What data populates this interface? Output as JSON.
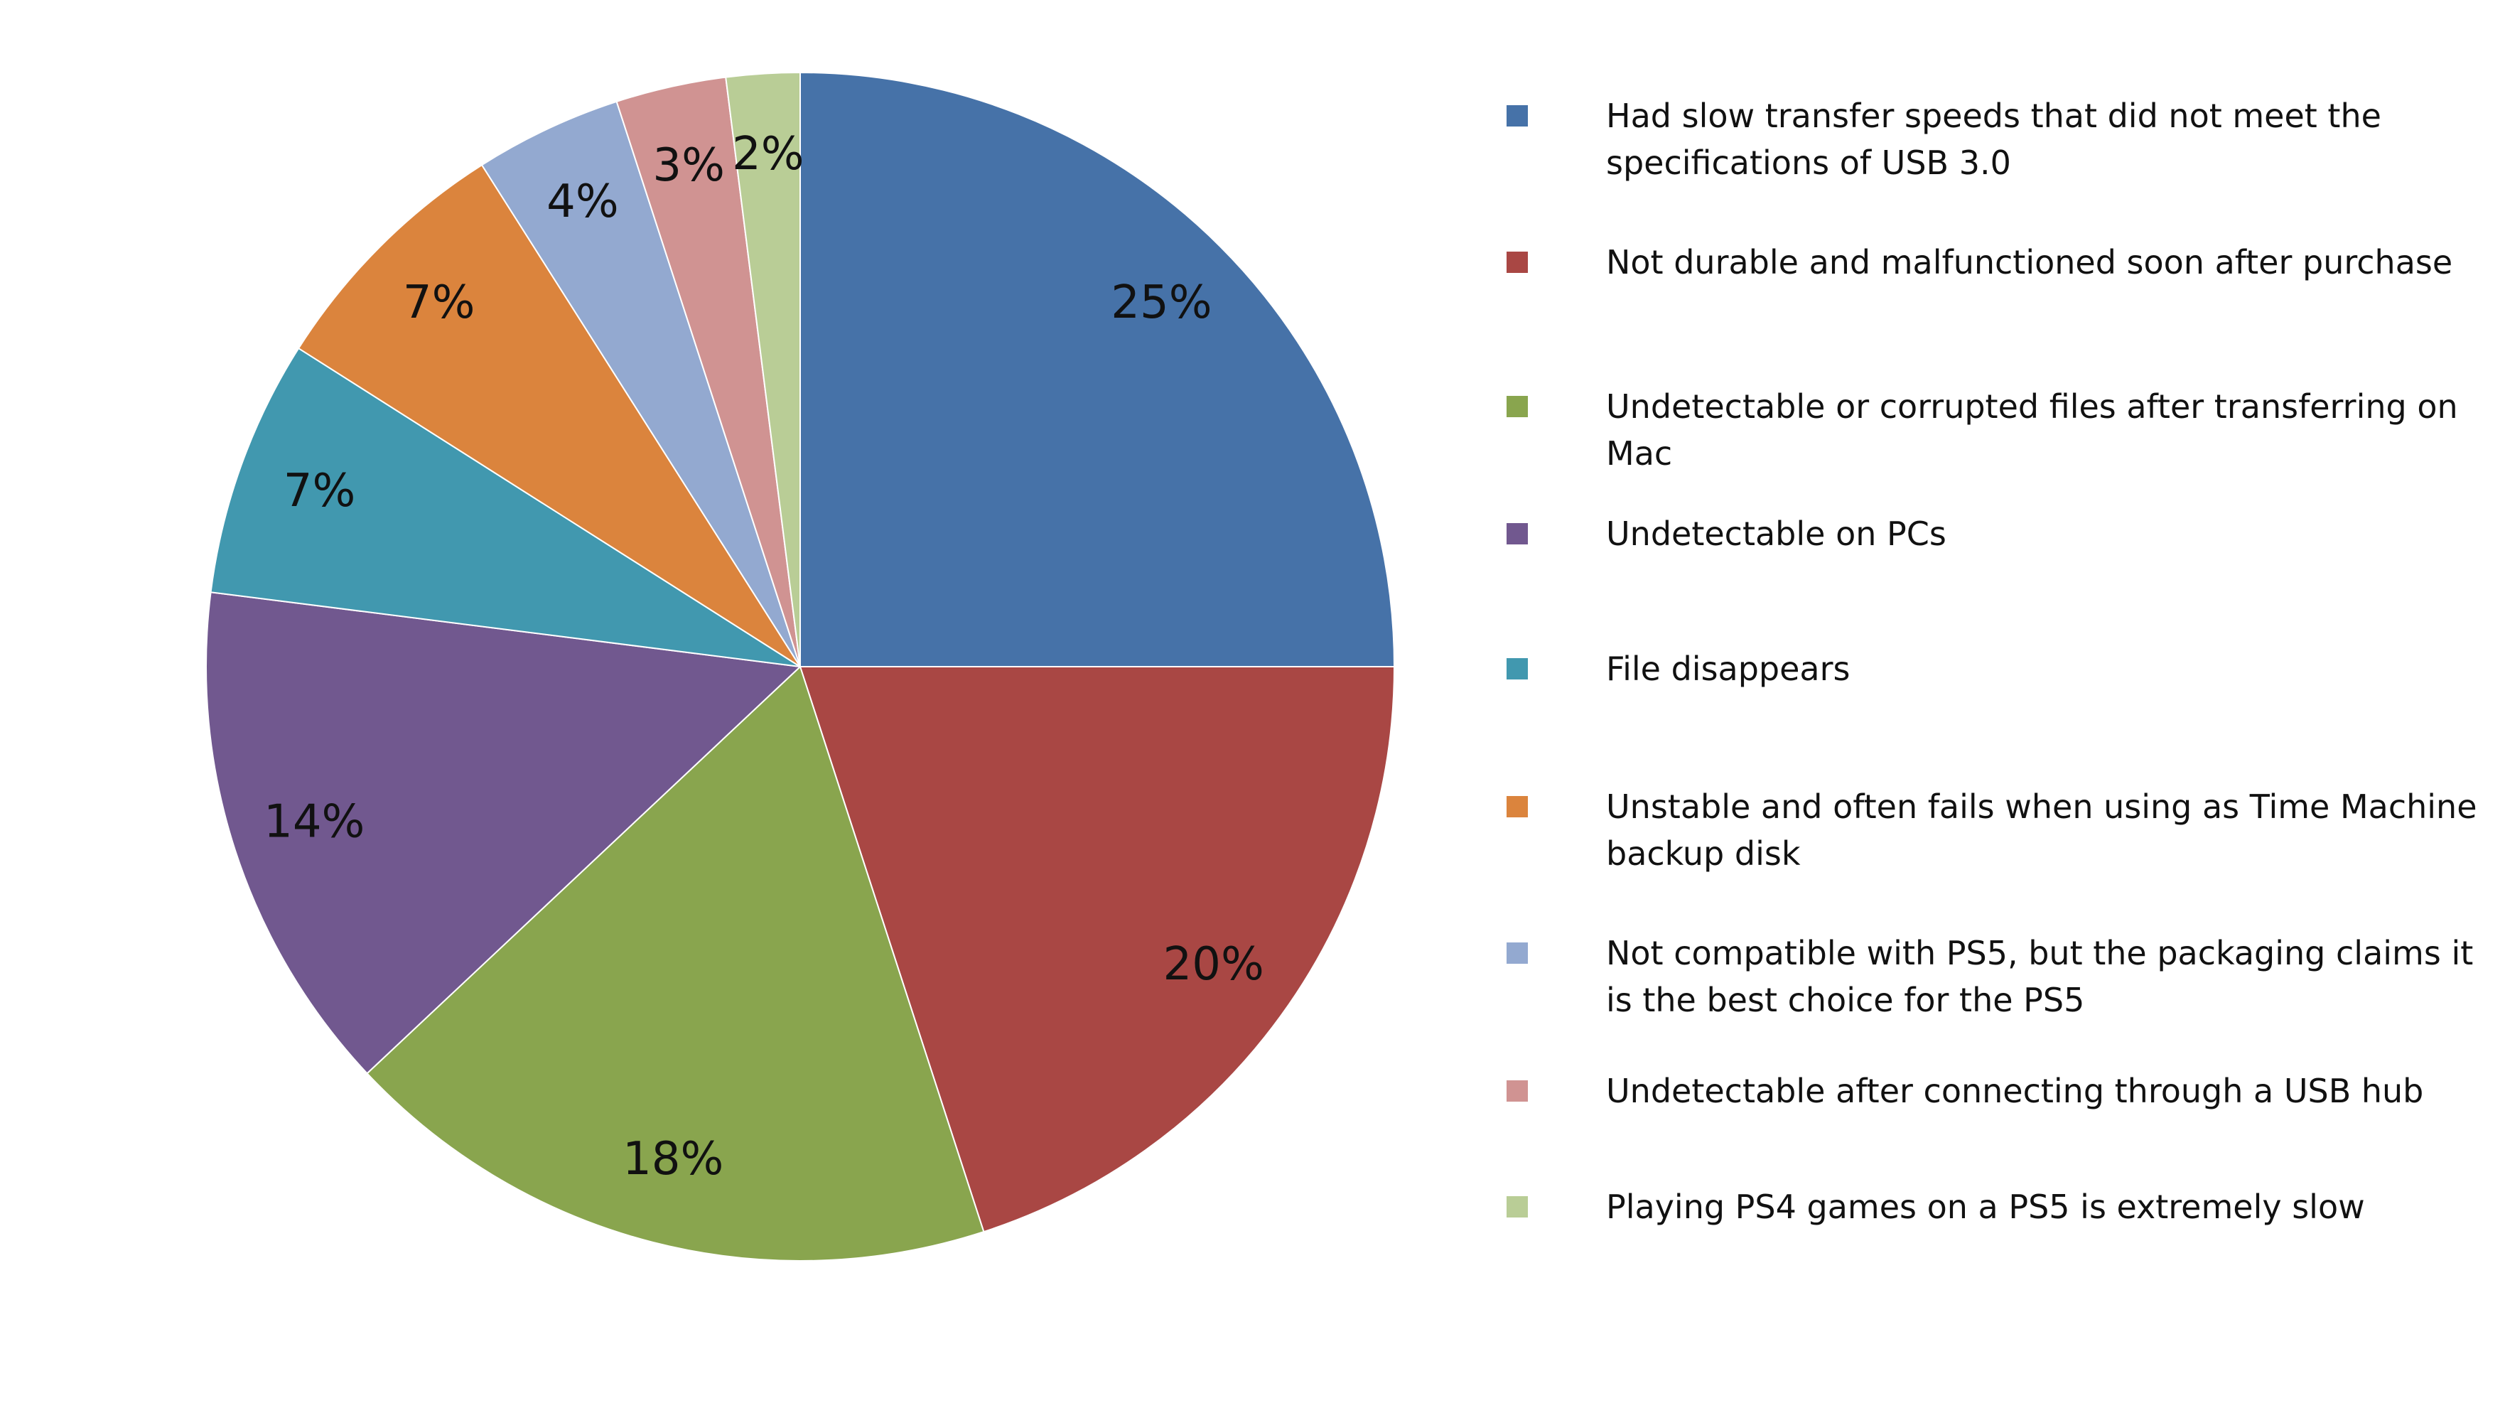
{
  "chart_data": {
    "type": "pie",
    "categories": [
      "Had slow transfer speeds that did not meet the specifications of USB 3.0",
      "Not durable and malfunctioned soon after purchase",
      "Undetectable or corrupted files after transferring on Mac",
      "Undetectable on PCs",
      "File disappears",
      "Unstable and often fails when using as Time Machine backup disk",
      "Not compatible with PS5, but the packaging claims it is the best choice for the PS5",
      "Undetectable after connecting through a USB hub",
      "Playing PS4 games on a PS5 is extremely slow"
    ],
    "values": [
      25,
      20,
      18,
      14,
      7,
      7,
      4,
      3,
      2
    ],
    "value_labels": [
      "25%",
      "20%",
      "18%",
      "14%",
      "7%",
      "7%",
      "4%",
      "3%",
      "2%"
    ],
    "colors": [
      "#4672a8",
      "#a94744",
      "#89a54e",
      "#71588f",
      "#4198af",
      "#db843d",
      "#93a9d0",
      "#d09392",
      "#b9cd96"
    ],
    "legend": "right"
  }
}
